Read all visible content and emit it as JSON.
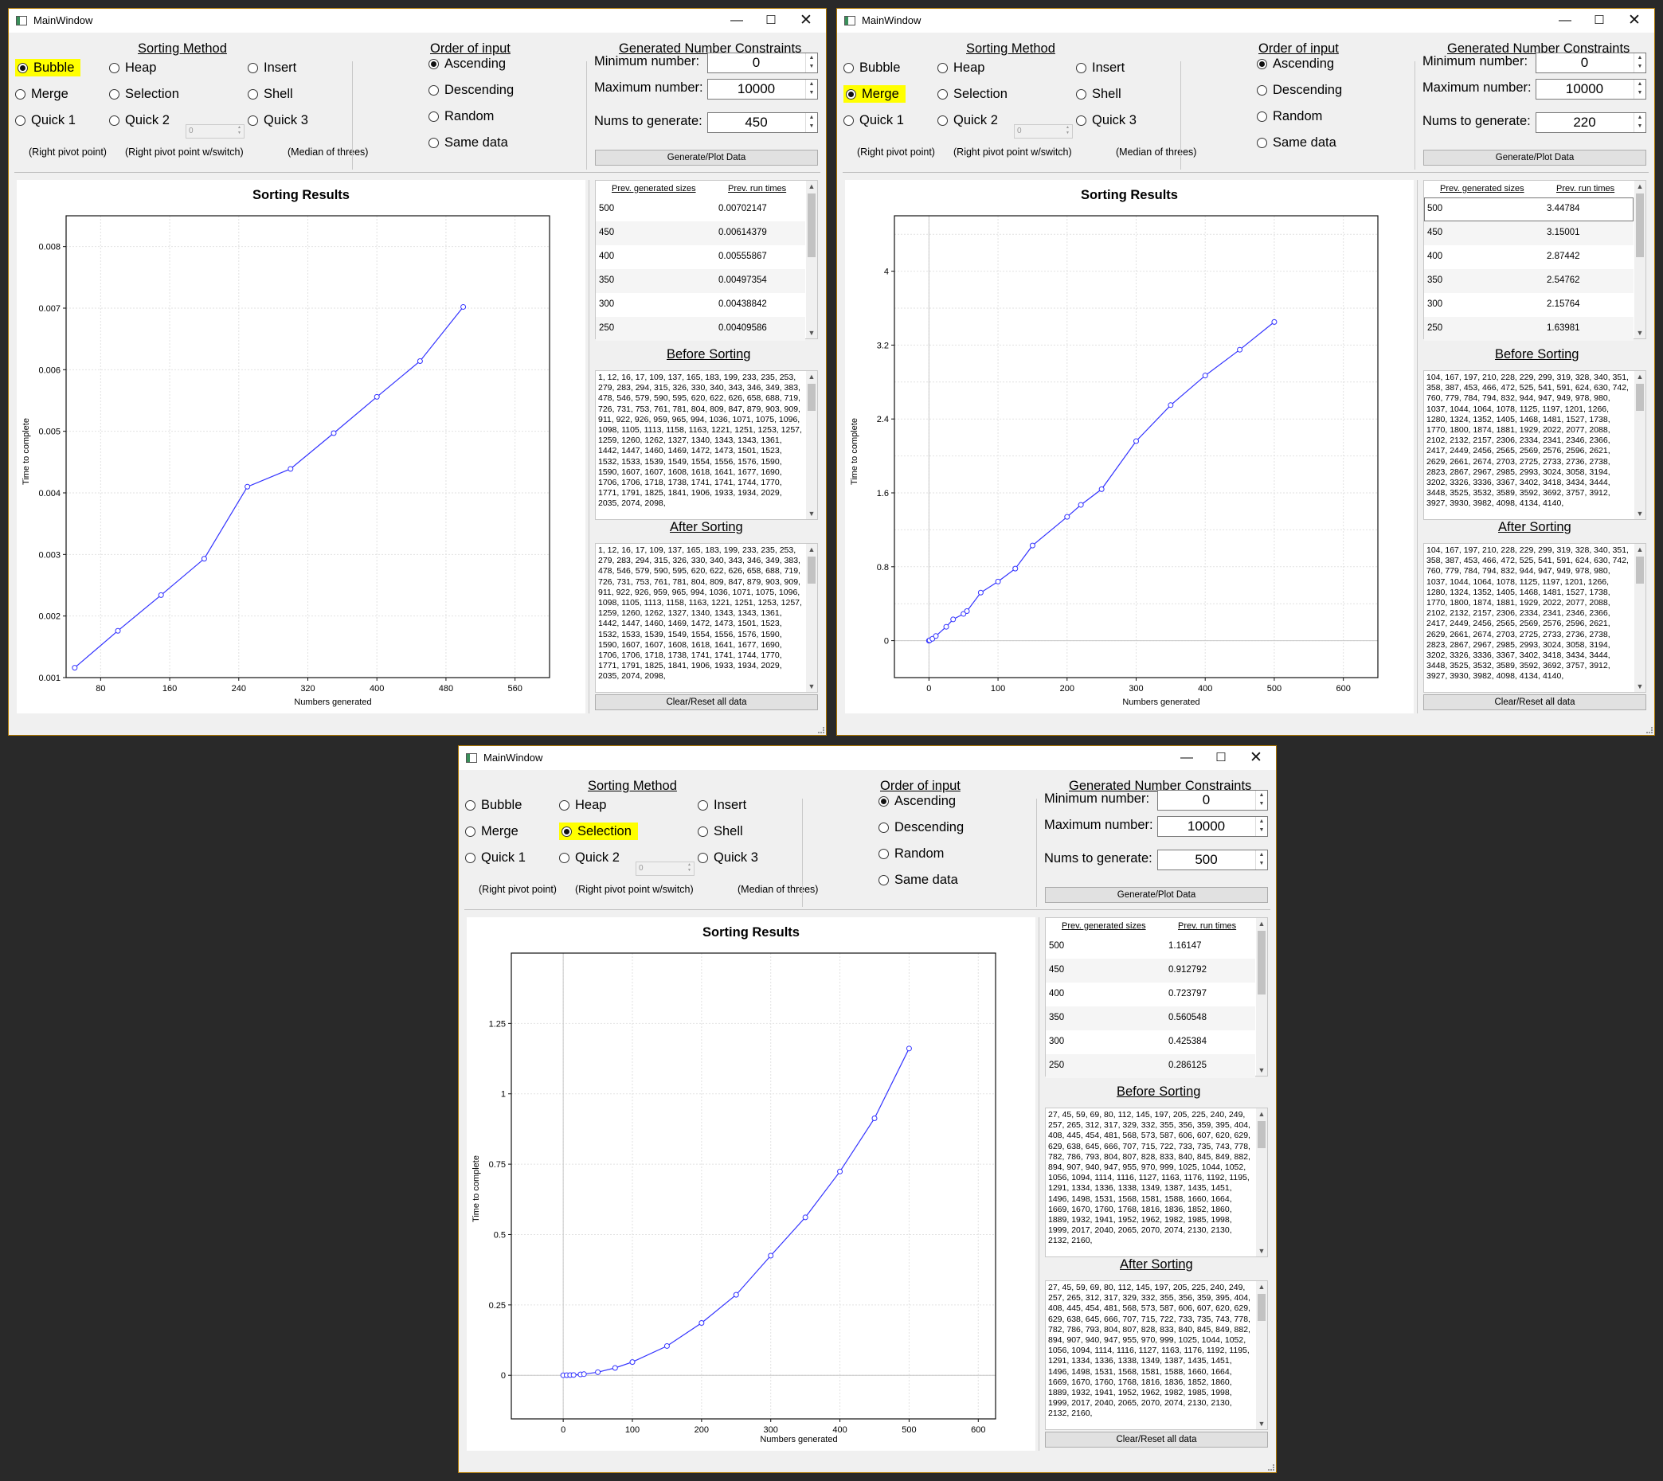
{
  "windows": [
    {
      "id": "w1",
      "title": "MainWindow",
      "sorting_method_label": "Sorting Method",
      "order_label": "Order of input",
      "constraints_label": "Generated Number Constraints",
      "methods": [
        {
          "label": "Bubble",
          "checked": true
        },
        {
          "label": "Heap",
          "checked": false
        },
        {
          "label": "Insert",
          "checked": false
        },
        {
          "label": "Merge",
          "checked": false
        },
        {
          "label": "Selection",
          "checked": false
        },
        {
          "label": "Shell",
          "checked": false
        },
        {
          "label": "Quick 1",
          "checked": false
        },
        {
          "label": "Quick 2",
          "checked": false
        },
        {
          "label": "Quick 3",
          "checked": false
        }
      ],
      "quick_notes": [
        "(Right pivot point)",
        "(Right pivot point w/switch)",
        "(Median of threes)"
      ],
      "quick2_value": "0",
      "orders": [
        {
          "label": "Ascending",
          "checked": true
        },
        {
          "label": "Descending",
          "checked": false
        },
        {
          "label": "Random",
          "checked": false
        },
        {
          "label": "Same data",
          "checked": false
        }
      ],
      "min_label": "Minimum number:",
      "max_label": "Maximum number:",
      "nums_label": "Nums to generate:",
      "min_value": "0",
      "max_value": "10000",
      "nums_value": "450",
      "generate_label": "Generate/Plot Data",
      "clear_label": "Clear/Reset all data",
      "prev_header_sizes": "Prev. generated sizes",
      "prev_header_times": "Prev. run times",
      "prev_rows": [
        [
          "500",
          "0.00702147"
        ],
        [
          "450",
          "0.00614379"
        ],
        [
          "400",
          "0.00555867"
        ],
        [
          "350",
          "0.00497354"
        ],
        [
          "300",
          "0.00438842"
        ],
        [
          "250",
          "0.00409586"
        ]
      ],
      "before_label": "Before Sorting",
      "after_label": "After Sorting",
      "before_text": "1, 12, 16, 17, 109, 137, 165, 183, 199, 233, 235, 253, 279, 283, 294, 315, 326, 330, 340, 343, 346, 349, 383, 478, 546, 579, 590, 595, 620, 622, 626, 658, 688, 719, 726, 731, 753, 761, 781, 804, 809, 847, 879, 903, 909, 911, 922, 926, 959, 965, 994, 1036, 1071, 1075, 1096, 1098, 1105, 1113, 1158, 1163, 1221, 1251, 1253, 1257, 1259, 1260, 1262, 1327, 1340, 1343, 1343, 1361, 1442, 1447, 1460, 1469, 1472, 1473, 1501, 1523, 1532, 1533, 1539, 1549, 1554, 1556, 1576, 1590, 1590, 1607, 1607, 1608, 1618, 1641, 1677, 1690, 1706, 1706, 1718, 1738, 1741, 1741, 1744, 1770, 1771, 1791, 1825, 1841, 1906, 1933, 1934, 2029, 2035, 2074, 2098,",
      "after_text": "1, 12, 16, 17, 109, 137, 165, 183, 199, 233, 235, 253, 279, 283, 294, 315, 326, 330, 340, 343, 346, 349, 383, 478, 546, 579, 590, 595, 620, 622, 626, 658, 688, 719, 726, 731, 753, 761, 781, 804, 809, 847, 879, 903, 909, 911, 922, 926, 959, 965, 994, 1036, 1071, 1075, 1096, 1098, 1105, 1113, 1158, 1163, 1221, 1251, 1253, 1257, 1259, 1260, 1262, 1327, 1340, 1343, 1343, 1361, 1442, 1447, 1460, 1469, 1472, 1473, 1501, 1523, 1532, 1533, 1539, 1549, 1554, 1556, 1576, 1590, 1590, 1607, 1607, 1608, 1618, 1641, 1677, 1690, 1706, 1706, 1718, 1738, 1741, 1741, 1744, 1770, 1771, 1791, 1825, 1841, 1906, 1933, 1934, 2029, 2035, 2074, 2098,",
      "chart_data": {
        "type": "line",
        "title": "Sorting Results",
        "xlabel": "Numbers generated",
        "ylabel": "Time to complete",
        "x": [
          50,
          100,
          150,
          200,
          250,
          300,
          350,
          400,
          450,
          500
        ],
        "y": [
          0.00116,
          0.00176,
          0.00234,
          0.00293,
          0.0041,
          0.00439,
          0.00497,
          0.00556,
          0.00614,
          0.00702
        ],
        "xlim": [
          40,
          600
        ],
        "ylim": [
          0.001,
          0.0085
        ],
        "xticks": [
          80,
          160,
          240,
          320,
          400,
          480,
          560
        ],
        "yticks": [
          0.001,
          0.002,
          0.003,
          0.004,
          0.005,
          0.006,
          0.007,
          0.008
        ],
        "ytick_labels": [
          "0.001",
          "0.002",
          "0.003",
          "0.004",
          "0.005",
          "0.006",
          "0.007",
          "0.008"
        ],
        "xgrid": [
          80,
          160,
          240,
          320,
          400,
          480,
          560
        ],
        "ygrid": [
          0.001,
          0.002,
          0.003,
          0.004,
          0.005,
          0.006,
          0.007,
          0.008
        ],
        "zero_x": null,
        "zero_y": null,
        "line_color": "#3333ff",
        "grid": true
      }
    },
    {
      "id": "w2",
      "title": "MainWindow",
      "sorting_method_label": "Sorting Method",
      "order_label": "Order of input",
      "constraints_label": "Generated Number Constraints",
      "methods": [
        {
          "label": "Bubble",
          "checked": false
        },
        {
          "label": "Heap",
          "checked": false
        },
        {
          "label": "Insert",
          "checked": false
        },
        {
          "label": "Merge",
          "checked": true
        },
        {
          "label": "Selection",
          "checked": false
        },
        {
          "label": "Shell",
          "checked": false
        },
        {
          "label": "Quick 1",
          "checked": false
        },
        {
          "label": "Quick 2",
          "checked": false
        },
        {
          "label": "Quick 3",
          "checked": false
        }
      ],
      "quick_notes": [
        "(Right pivot point)",
        "(Right pivot point w/switch)",
        "(Median of threes)"
      ],
      "quick2_value": "0",
      "orders": [
        {
          "label": "Ascending",
          "checked": true
        },
        {
          "label": "Descending",
          "checked": false
        },
        {
          "label": "Random",
          "checked": false
        },
        {
          "label": "Same data",
          "checked": false
        }
      ],
      "min_label": "Minimum number:",
      "max_label": "Maximum number:",
      "nums_label": "Nums to generate:",
      "min_value": "0",
      "max_value": "10000",
      "nums_value": "220",
      "generate_label": "Generate/Plot Data",
      "clear_label": "Clear/Reset all data",
      "prev_header_sizes": "Prev. generated sizes",
      "prev_header_times": "Prev. run times",
      "prev_rows": [
        [
          "500",
          "3.44784"
        ],
        [
          "450",
          "3.15001"
        ],
        [
          "400",
          "2.87442"
        ],
        [
          "350",
          "2.54762"
        ],
        [
          "300",
          "2.15764"
        ],
        [
          "250",
          "1.63981"
        ]
      ],
      "before_label": "Before Sorting",
      "after_label": "After Sorting",
      "before_text": "104, 167, 197, 210, 228, 229, 299, 319, 328, 340, 351, 358, 387, 453, 466, 472, 525, 541, 591, 624, 630, 742, 760, 779, 784, 794, 832, 944, 947, 949, 978, 980, 1037, 1044, 1064, 1078, 1125, 1197, 1201, 1266, 1280, 1324, 1352, 1405, 1468, 1481, 1527, 1738, 1770, 1800, 1874, 1881, 1929, 2022, 2077, 2088, 2102, 2132, 2157, 2306, 2334, 2341, 2346, 2366, 2417, 2449, 2456, 2565, 2569, 2576, 2596, 2621, 2629, 2661, 2674, 2703, 2725, 2733, 2736, 2738, 2823, 2867, 2967, 2985, 2993, 3024, 3058, 3194, 3202, 3326, 3336, 3367, 3402, 3418, 3434, 3444, 3448, 3525, 3532, 3589, 3592, 3692, 3757, 3912, 3927, 3930, 3982, 4098, 4134, 4140,",
      "after_text": "104, 167, 197, 210, 228, 229, 299, 319, 328, 340, 351, 358, 387, 453, 466, 472, 525, 541, 591, 624, 630, 742, 760, 779, 784, 794, 832, 944, 947, 949, 978, 980, 1037, 1044, 1064, 1078, 1125, 1197, 1201, 1266, 1280, 1324, 1352, 1405, 1468, 1481, 1527, 1738, 1770, 1800, 1874, 1881, 1929, 2022, 2077, 2088, 2102, 2132, 2157, 2306, 2334, 2341, 2346, 2366, 2417, 2449, 2456, 2565, 2569, 2576, 2596, 2621, 2629, 2661, 2674, 2703, 2725, 2733, 2736, 2738, 2823, 2867, 2967, 2985, 2993, 3024, 3058, 3194, 3202, 3326, 3336, 3367, 3402, 3418, 3434, 3444, 3448, 3525, 3532, 3589, 3592, 3692, 3757, 3912, 3927, 3930, 3982, 4098, 4134, 4140,",
      "chart_data": {
        "type": "line",
        "title": "Sorting Results",
        "xlabel": "Numbers generated",
        "ylabel": "Time to complete",
        "x": [
          0,
          1,
          5,
          10,
          25,
          35,
          50,
          55,
          75,
          100,
          125,
          150,
          200,
          220,
          250,
          300,
          350,
          400,
          450,
          500
        ],
        "y": [
          0,
          0.004,
          0.02,
          0.05,
          0.15,
          0.23,
          0.29,
          0.32,
          0.52,
          0.64,
          0.78,
          1.03,
          1.34,
          1.47,
          1.64,
          2.16,
          2.55,
          2.87,
          3.15,
          3.45
        ],
        "xlim": [
          -50,
          650
        ],
        "ylim": [
          -0.4,
          4.6
        ],
        "xticks": [
          0,
          100,
          200,
          300,
          400,
          500,
          600
        ],
        "yticks": [
          0,
          0.8,
          1.6,
          2.4,
          3.2,
          4
        ],
        "ytick_labels": [
          "0",
          "0.8",
          "1.6",
          "2.4",
          "3.2",
          "4"
        ],
        "xgrid": [
          0,
          100,
          200,
          300,
          400,
          500,
          600
        ],
        "ygrid": [
          0,
          0.4,
          0.8,
          1.2,
          1.6,
          2.0,
          2.4,
          2.8,
          3.2,
          3.6,
          4.0,
          4.4
        ],
        "zero_x": 0,
        "zero_y": 0,
        "line_color": "#3333ff",
        "grid": true
      }
    },
    {
      "id": "w3",
      "title": "MainWindow",
      "sorting_method_label": "Sorting Method",
      "order_label": "Order of input",
      "constraints_label": "Generated Number Constraints",
      "methods": [
        {
          "label": "Bubble",
          "checked": false
        },
        {
          "label": "Heap",
          "checked": false
        },
        {
          "label": "Insert",
          "checked": false
        },
        {
          "label": "Merge",
          "checked": false
        },
        {
          "label": "Selection",
          "checked": true
        },
        {
          "label": "Shell",
          "checked": false
        },
        {
          "label": "Quick 1",
          "checked": false
        },
        {
          "label": "Quick 2",
          "checked": false
        },
        {
          "label": "Quick 3",
          "checked": false
        }
      ],
      "quick_notes": [
        "(Right pivot point)",
        "(Right pivot point w/switch)",
        "(Median of threes)"
      ],
      "quick2_value": "0",
      "orders": [
        {
          "label": "Ascending",
          "checked": true
        },
        {
          "label": "Descending",
          "checked": false
        },
        {
          "label": "Random",
          "checked": false
        },
        {
          "label": "Same data",
          "checked": false
        }
      ],
      "min_label": "Minimum number:",
      "max_label": "Maximum number:",
      "nums_label": "Nums to generate:",
      "min_value": "0",
      "max_value": "10000",
      "nums_value": "500",
      "generate_label": "Generate/Plot Data",
      "clear_label": "Clear/Reset all data",
      "prev_header_sizes": "Prev. generated sizes",
      "prev_header_times": "Prev. run times",
      "prev_rows": [
        [
          "500",
          "1.16147"
        ],
        [
          "450",
          "0.912792"
        ],
        [
          "400",
          "0.723797"
        ],
        [
          "350",
          "0.560548"
        ],
        [
          "300",
          "0.425384"
        ],
        [
          "250",
          "0.286125"
        ]
      ],
      "before_label": "Before Sorting",
      "after_label": "After Sorting",
      "before_text": "27, 45, 59, 69, 80, 112, 145, 197, 205, 225, 240, 249, 257, 265, 312, 317, 329, 332, 355, 356, 359, 395, 404, 408, 445, 454, 481, 568, 573, 587, 606, 607, 620, 629, 629, 638, 645, 666, 707, 715, 722, 733, 735, 743, 778, 782, 786, 793, 804, 807, 828, 833, 840, 845, 849, 882, 894, 907, 940, 947, 955, 970, 999, 1025, 1044, 1052, 1056, 1094, 1114, 1116, 1127, 1163, 1176, 1192, 1195, 1291, 1334, 1336, 1338, 1349, 1387, 1435, 1451, 1496, 1498, 1531, 1568, 1581, 1588, 1660, 1664, 1669, 1670, 1760, 1768, 1816, 1836, 1852, 1860, 1889, 1932, 1941, 1952, 1962, 1982, 1985, 1998, 1999, 2017, 2040, 2065, 2070, 2074, 2130, 2130, 2132, 2160,",
      "after_text": "27, 45, 59, 69, 80, 112, 145, 197, 205, 225, 240, 249, 257, 265, 312, 317, 329, 332, 355, 356, 359, 395, 404, 408, 445, 454, 481, 568, 573, 587, 606, 607, 620, 629, 629, 638, 645, 666, 707, 715, 722, 733, 735, 743, 778, 782, 786, 793, 804, 807, 828, 833, 840, 845, 849, 882, 894, 907, 940, 947, 955, 970, 999, 1025, 1044, 1052, 1056, 1094, 1114, 1116, 1127, 1163, 1176, 1192, 1195, 1291, 1334, 1336, 1338, 1349, 1387, 1435, 1451, 1496, 1498, 1531, 1568, 1581, 1588, 1660, 1664, 1669, 1670, 1760, 1768, 1816, 1836, 1852, 1860, 1889, 1932, 1941, 1952, 1962, 1982, 1985, 1998, 1999, 2017, 2040, 2065, 2070, 2074, 2130, 2130, 2132, 2160,",
      "chart_data": {
        "type": "line",
        "title": "Sorting Results",
        "xlabel": "Numbers generated",
        "ylabel": "Time to complete",
        "x": [
          0,
          5,
          10,
          15,
          25,
          30,
          50,
          75,
          100,
          150,
          200,
          250,
          300,
          350,
          400,
          450,
          500
        ],
        "y": [
          0,
          0.0003,
          0.0006,
          0.001,
          0.003,
          0.004,
          0.011,
          0.026,
          0.047,
          0.104,
          0.186,
          0.286,
          0.425,
          0.561,
          0.724,
          0.913,
          1.161
        ],
        "xlim": [
          -75,
          625
        ],
        "ylim": [
          -0.155,
          1.5
        ],
        "xticks": [
          0,
          100,
          200,
          300,
          400,
          500,
          600
        ],
        "yticks": [
          0,
          0.25,
          0.5,
          0.75,
          1,
          1.25
        ],
        "ytick_labels": [
          "0",
          "0.25",
          "0.5",
          "0.75",
          "1",
          "1.25"
        ],
        "xgrid": [
          0,
          100,
          200,
          300,
          400,
          500,
          600
        ],
        "ygrid": [
          0,
          0.25,
          0.5,
          0.75,
          1.0,
          1.25
        ],
        "zero_x": 0,
        "zero_y": 0,
        "line_color": "#3333ff",
        "grid": true
      }
    }
  ]
}
